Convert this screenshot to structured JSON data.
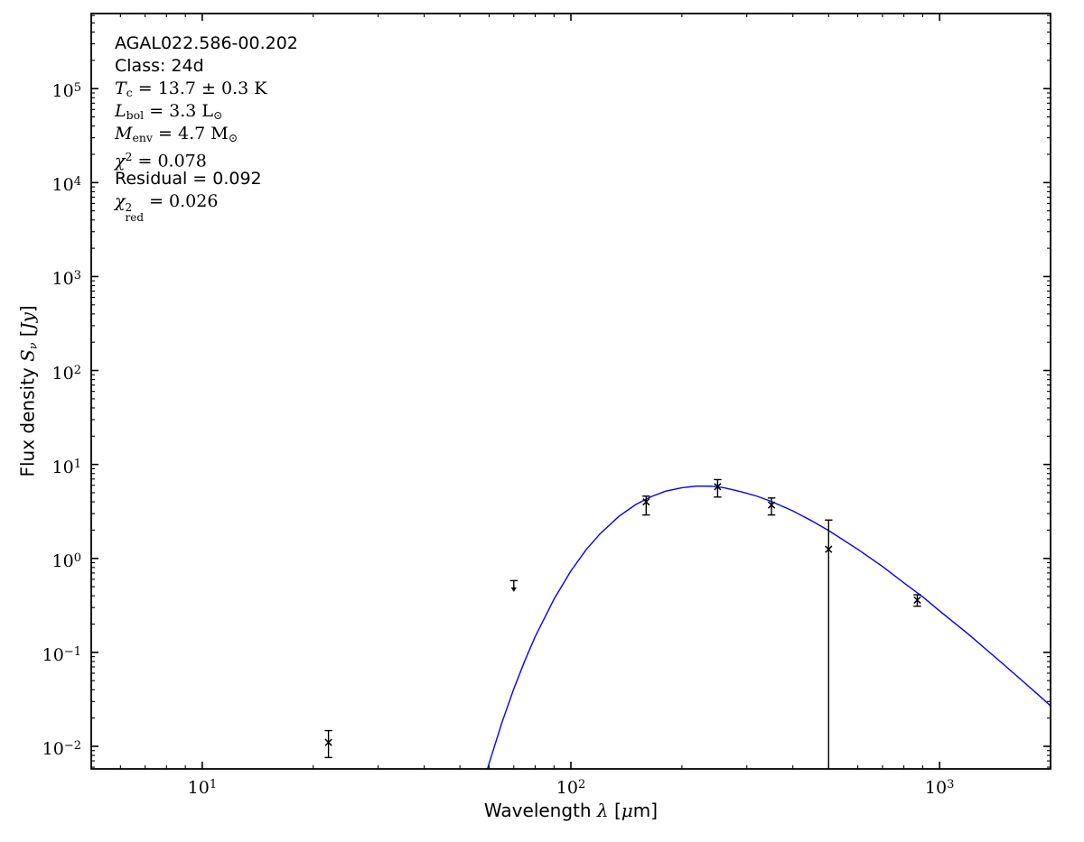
{
  "colors": {
    "background": "#ffffff",
    "frame": "#000000",
    "curve": "#0000ff",
    "marker": "#000000"
  },
  "annotation": {
    "lines": [
      {
        "text": "AGAL022.586-00.202",
        "segments": [
          {
            "s": "p",
            "t": "AGAL022.586-00.202"
          }
        ]
      },
      {
        "text": "Class: 24d",
        "segments": [
          {
            "s": "p",
            "t": "Class: 24d"
          }
        ]
      },
      {
        "text": "Tc = 13.7 ± 0.3 K",
        "segments": [
          {
            "s": "i",
            "t": "T"
          },
          {
            "s": "sub",
            "t": "c"
          },
          {
            "s": "r",
            "t": " = 13.7 ± 0.3 K"
          }
        ]
      },
      {
        "text": "Lbol = 3.3 L⊙",
        "segments": [
          {
            "s": "i",
            "t": "L"
          },
          {
            "s": "sub",
            "t": "bol"
          },
          {
            "s": "r",
            "t": " = 3.3 L"
          },
          {
            "s": "sub",
            "t": "⊙"
          }
        ]
      },
      {
        "text": "Menv = 4.7 M⊙",
        "segments": [
          {
            "s": "i",
            "t": "M"
          },
          {
            "s": "sub",
            "t": "env"
          },
          {
            "s": "r",
            "t": " = 4.7 M"
          },
          {
            "s": "sub",
            "t": "⊙"
          }
        ]
      },
      {
        "text": "χ² = 0.078",
        "segments": [
          {
            "s": "i",
            "t": "χ"
          },
          {
            "s": "sup",
            "t": "2"
          },
          {
            "s": "r",
            "t": " = 0.078"
          }
        ]
      },
      {
        "text": "Residual = 0.092",
        "segments": [
          {
            "s": "p",
            "t": "Residual = 0.092"
          }
        ]
      },
      {
        "text": "χ²red = 0.026",
        "segments": [
          {
            "s": "i",
            "t": "χ"
          },
          {
            "s": "ss",
            "sup": "2",
            "sub": "red"
          },
          {
            "s": "r",
            "t": " = 0.026"
          }
        ]
      }
    ]
  },
  "chart_data": {
    "type": "scatter",
    "title": "",
    "xlabel": "Wavelength λ [μm]",
    "ylabel": "Flux density Sν [Jy]",
    "xlabel_segments": [
      {
        "s": "p",
        "t": "Wavelength "
      },
      {
        "s": "i",
        "t": "λ"
      },
      {
        "s": "p",
        "t": " ["
      },
      {
        "s": "i",
        "t": "μ"
      },
      {
        "s": "p",
        "t": "m]"
      }
    ],
    "ylabel_segments": [
      {
        "s": "p",
        "t": "Flux density "
      },
      {
        "s": "i",
        "t": "S"
      },
      {
        "s": "subi",
        "t": "ν"
      },
      {
        "s": "p",
        "t": " ["
      },
      {
        "s": "i",
        "t": "Jy"
      },
      {
        "s": "p",
        "t": "]"
      }
    ],
    "xscale": "log",
    "yscale": "log",
    "xlim": [
      5,
      2000
    ],
    "ylim": [
      0.00575,
      630000
    ],
    "grid": false,
    "x_tick_exponents": [
      1,
      2,
      3
    ],
    "y_tick_exponents": [
      5,
      4,
      3,
      2,
      1,
      0,
      -1,
      -2
    ],
    "marker": "x",
    "points": [
      {
        "x": 22,
        "y": 0.011,
        "y_lo": 0.0076,
        "y_hi": 0.0147,
        "lo_cap": true
      },
      {
        "x": 160,
        "y": 4.0,
        "y_lo": 2.9,
        "y_hi": 4.6,
        "lo_cap": true
      },
      {
        "x": 250,
        "y": 5.8,
        "y_lo": 4.5,
        "y_hi": 6.9,
        "lo_cap": true
      },
      {
        "x": 350,
        "y": 3.7,
        "y_lo": 2.9,
        "y_hi": 4.4,
        "lo_cap": true
      },
      {
        "x": 500,
        "y": 1.25,
        "y_lo": 0.00575,
        "y_hi": 2.56,
        "lo_cap": false
      },
      {
        "x": 870,
        "y": 0.36,
        "y_lo": 0.31,
        "y_hi": 0.41,
        "lo_cap": true
      }
    ],
    "upper_limit": {
      "x": 70,
      "y": 0.58,
      "arrow_to": 0.44
    },
    "fit_curve": {
      "color": "#0000ff",
      "points": [
        [
          58,
          0.0042
        ],
        [
          60,
          0.0066
        ],
        [
          65,
          0.0179
        ],
        [
          70,
          0.0409
        ],
        [
          75,
          0.0816
        ],
        [
          80,
          0.147
        ],
        [
          90,
          0.369
        ],
        [
          100,
          0.736
        ],
        [
          110,
          1.24
        ],
        [
          120,
          1.83
        ],
        [
          135,
          2.81
        ],
        [
          150,
          3.75
        ],
        [
          165,
          4.54
        ],
        [
          180,
          5.17
        ],
        [
          200,
          5.66
        ],
        [
          220,
          5.89
        ],
        [
          240,
          5.87
        ],
        [
          260,
          5.66
        ],
        [
          290,
          5.12
        ],
        [
          320,
          4.59
        ],
        [
          350,
          4.03
        ],
        [
          400,
          3.2
        ],
        [
          450,
          2.51
        ],
        [
          500,
          1.98
        ],
        [
          600,
          1.25
        ],
        [
          700,
          0.82
        ],
        [
          800,
          0.55
        ],
        [
          900,
          0.39
        ],
        [
          1000,
          0.276
        ],
        [
          1200,
          0.155
        ],
        [
          1500,
          0.073
        ],
        [
          1800,
          0.039
        ],
        [
          2000,
          0.027
        ]
      ]
    }
  }
}
